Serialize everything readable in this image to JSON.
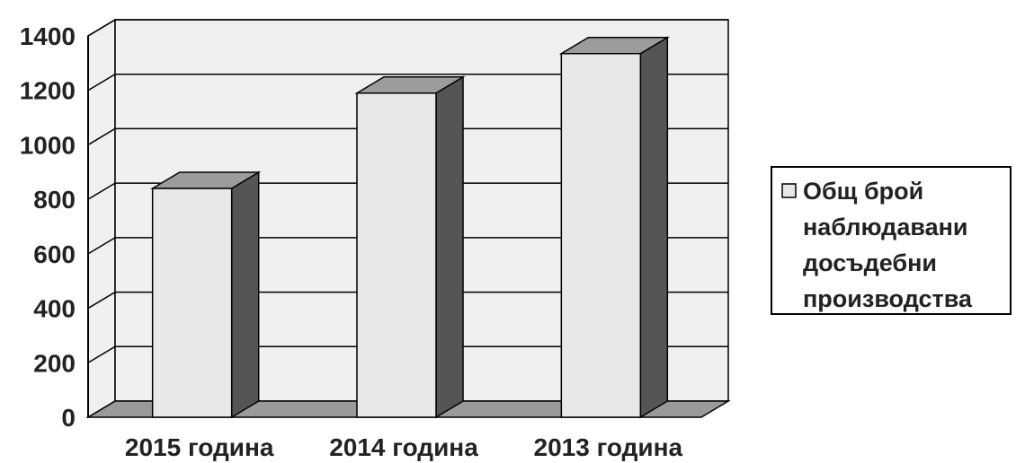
{
  "chart_data": {
    "type": "bar",
    "style": "3d-column",
    "categories": [
      "2015 година",
      "2014 година",
      "2013 година"
    ],
    "series": [
      {
        "name": "Общ брой наблюдавани досъдебни производства",
        "values": [
          840,
          1190,
          1335
        ],
        "color": "#e8e8e8"
      }
    ],
    "ylim": [
      0,
      1400
    ],
    "yticks": [
      0,
      200,
      400,
      600,
      800,
      1000,
      1200,
      1400
    ],
    "grid": true,
    "legend_position": "right",
    "colors": {
      "wall": "#f0f0f0",
      "floor": "#9a9a9a",
      "bar_front": "#e8e8e8",
      "bar_top": "#9c9c9c",
      "bar_side": "#555555",
      "grid": "#000000"
    }
  },
  "legend": {
    "lines": [
      "Общ брой",
      "наблюдавани",
      "досъдебни",
      "производства"
    ]
  }
}
